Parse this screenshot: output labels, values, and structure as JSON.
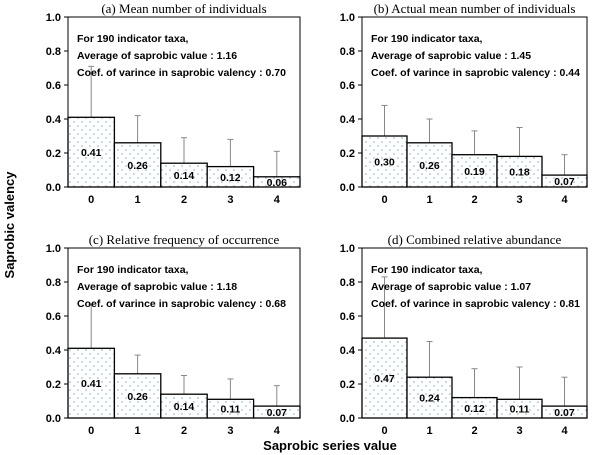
{
  "figure": {
    "ylabel": "Saprobic valency",
    "xlabel": "Saprobic series value"
  },
  "chart_data": [
    {
      "type": "bar",
      "title": "(a) Mean number of individuals",
      "categories": [
        "0",
        "1",
        "2",
        "3",
        "4"
      ],
      "values": [
        0.41,
        0.26,
        0.14,
        0.12,
        0.06
      ],
      "value_labels": [
        "0.41",
        "0.26",
        "0.14",
        "0.12",
        "0.06"
      ],
      "error_upper": [
        0.71,
        0.42,
        0.29,
        0.28,
        0.21
      ],
      "ylim": [
        0,
        1.0
      ],
      "yticks": [
        "0.0",
        "0.2",
        "0.4",
        "0.6",
        "0.8",
        "1.0"
      ],
      "notes": [
        "For 190 indicator taxa,",
        "Average of saprobic value : 1.16",
        "Coef. of varince in saprobic valency : 0.70"
      ]
    },
    {
      "type": "bar",
      "title": "(b) Actual mean number of individuals",
      "categories": [
        "0",
        "1",
        "2",
        "3",
        "4"
      ],
      "values": [
        0.3,
        0.26,
        0.19,
        0.18,
        0.07
      ],
      "value_labels": [
        "0.30",
        "0.26",
        "0.19",
        "0.18",
        "0.07"
      ],
      "error_upper": [
        0.48,
        0.4,
        0.33,
        0.35,
        0.19
      ],
      "ylim": [
        0,
        1.0
      ],
      "yticks": [
        "0.0",
        "0.2",
        "0.4",
        "0.6",
        "0.8",
        "1.0"
      ],
      "notes": [
        "For 190 indicator taxa,",
        "Average of saprobic value : 1.45",
        "Coef. of varince in saprobic valency : 0.44"
      ]
    },
    {
      "type": "bar",
      "title": "(c) Relative frequency of occurrence",
      "categories": [
        "0",
        "1",
        "2",
        "3",
        "4"
      ],
      "values": [
        0.41,
        0.26,
        0.14,
        0.11,
        0.07
      ],
      "value_labels": [
        "0.41",
        "0.26",
        "0.14",
        "0.11",
        "0.07"
      ],
      "error_upper": [
        0.67,
        0.37,
        0.25,
        0.23,
        0.19
      ],
      "ylim": [
        0,
        1.0
      ],
      "yticks": [
        "0.0",
        "0.2",
        "0.4",
        "0.6",
        "0.8",
        "1.0"
      ],
      "notes": [
        "For 190 indicator taxa,",
        "Average of saprobic value : 1.18",
        "Coef. of varince in saprobic valency : 0.68"
      ]
    },
    {
      "type": "bar",
      "title": "(d) Combined relative abundance",
      "categories": [
        "0",
        "1",
        "2",
        "3",
        "4"
      ],
      "values": [
        0.47,
        0.24,
        0.12,
        0.11,
        0.07
      ],
      "value_labels": [
        "0.47",
        "0.24",
        "0.12",
        "0.11",
        "0.07"
      ],
      "error_upper": [
        0.83,
        0.45,
        0.29,
        0.3,
        0.24
      ],
      "ylim": [
        0,
        1.0
      ],
      "yticks": [
        "0.0",
        "0.2",
        "0.4",
        "0.6",
        "0.8",
        "1.0"
      ],
      "notes": [
        "For 190 indicator taxa,",
        "Average of saprobic value : 1.07",
        "Coef. of varince in saprobic valency : 0.81"
      ]
    }
  ]
}
